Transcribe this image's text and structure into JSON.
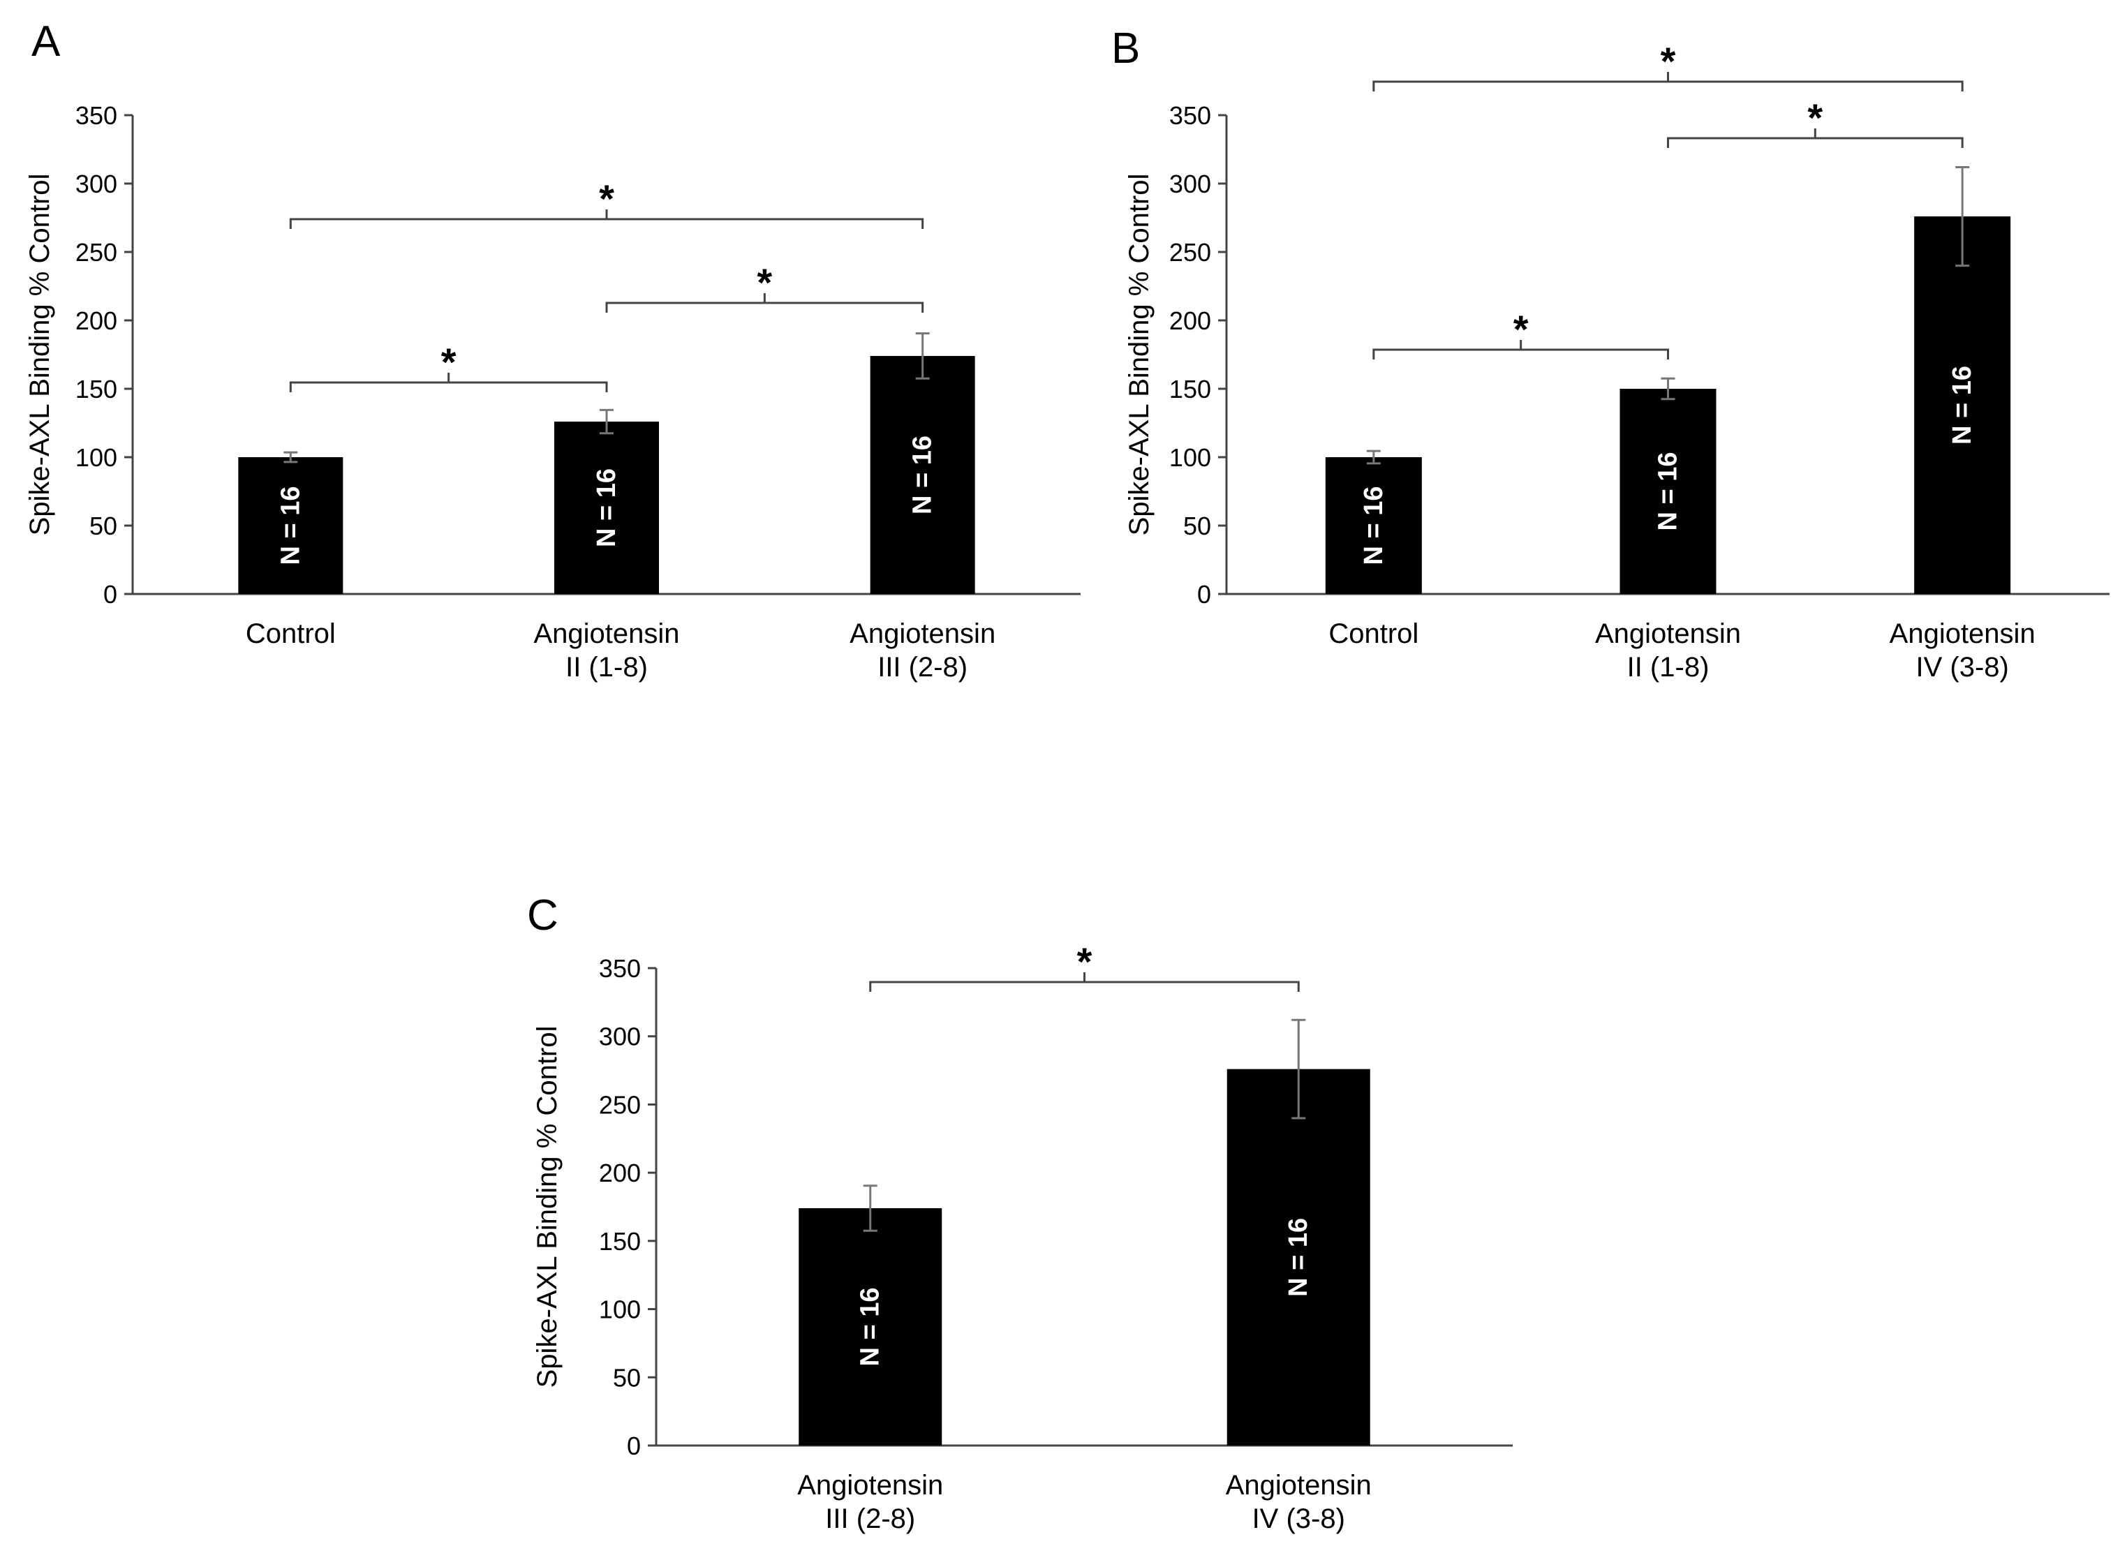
{
  "figure": {
    "description_panels": [
      "A",
      "B",
      "C"
    ]
  },
  "chart_data": [
    {
      "panel": "A",
      "type": "bar",
      "ylabel": "Spike-AXL Binding % Control",
      "ylim": [
        0,
        350
      ],
      "yticks": [
        0,
        50,
        100,
        150,
        200,
        250,
        300,
        350
      ],
      "categories": [
        [
          "Control"
        ],
        [
          "Angiotensin",
          "II (1-8)"
        ],
        [
          "Angiotensin",
          "III (2-8)"
        ]
      ],
      "values": [
        100,
        126,
        174
      ],
      "errors": [
        3.5,
        8.5,
        16.5
      ],
      "bar_labels": [
        "N = 16",
        "N = 16",
        "N = 16"
      ],
      "significance": [
        {
          "from": 0,
          "to": 2,
          "label": "*"
        },
        {
          "from": 1,
          "to": 2,
          "label": "*"
        },
        {
          "from": 0,
          "to": 1,
          "label": "*"
        }
      ],
      "color": "#000000"
    },
    {
      "panel": "B",
      "type": "bar",
      "ylabel": "Spike-AXL Binding % Control",
      "ylim": [
        0,
        350
      ],
      "yticks": [
        0,
        50,
        100,
        150,
        200,
        250,
        300,
        350
      ],
      "categories": [
        [
          "Control"
        ],
        [
          "Angiotensin",
          "II (1-8)"
        ],
        [
          "Angiotensin",
          "IV (3-8)"
        ]
      ],
      "values": [
        100,
        150,
        276
      ],
      "errors": [
        4.5,
        7.5,
        36
      ],
      "bar_labels": [
        "N = 16",
        "N = 16",
        "N = 16"
      ],
      "significance": [
        {
          "from": 0,
          "to": 2,
          "label": "*"
        },
        {
          "from": 1,
          "to": 2,
          "label": "*"
        },
        {
          "from": 0,
          "to": 1,
          "label": "*"
        }
      ],
      "color": "#000000"
    },
    {
      "panel": "C",
      "type": "bar",
      "ylabel": "Spike-AXL Binding % Control",
      "ylim": [
        0,
        350
      ],
      "yticks": [
        0,
        50,
        100,
        150,
        200,
        250,
        300,
        350
      ],
      "categories": [
        [
          "Angiotensin",
          "III (2-8)"
        ],
        [
          "Angiotensin",
          "IV (3-8)"
        ]
      ],
      "values": [
        174,
        276
      ],
      "errors": [
        16.5,
        36
      ],
      "bar_labels": [
        "N = 16",
        "N = 16"
      ],
      "significance": [
        {
          "from": 0,
          "to": 1,
          "label": "*"
        }
      ],
      "color": "#000000"
    }
  ]
}
